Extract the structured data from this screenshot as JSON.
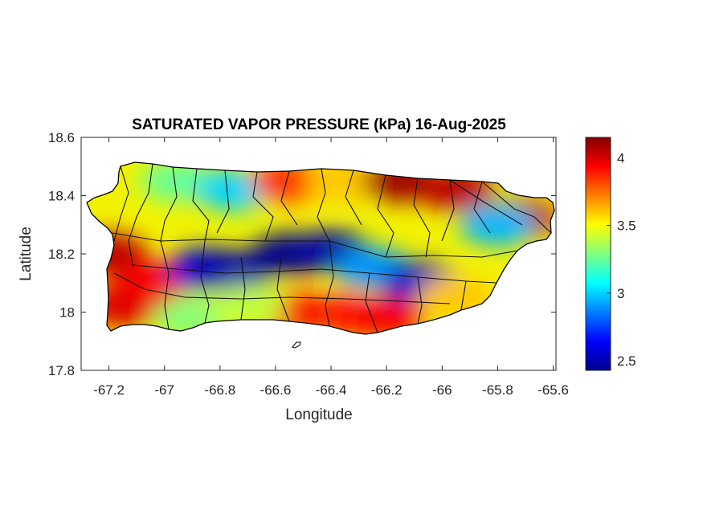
{
  "chart_data": {
    "type": "heatmap",
    "title": "SATURATED VAPOR PRESSURE (kPa) 16-Aug-2025",
    "xlabel": "Longitude",
    "ylabel": "Latitude",
    "xlim": [
      -67.3,
      -65.59
    ],
    "ylim": [
      17.8,
      18.6
    ],
    "x_ticks": [
      -67.2,
      -67,
      -66.8,
      -66.6,
      -66.4,
      -66.2,
      -66,
      -65.8,
      -65.6
    ],
    "x_tick_labels": [
      "-67.2",
      "-67",
      "-66.8",
      "-66.6",
      "-66.4",
      "-66.2",
      "-66",
      "-65.8",
      "-65.6"
    ],
    "y_ticks": [
      17.8,
      18,
      18.2,
      18.4,
      18.6
    ],
    "y_tick_labels": [
      "17.8",
      "18",
      "18.2",
      "18.4",
      "18.6"
    ],
    "colorbar": {
      "colormap": "jet",
      "range": [
        2.43,
        4.15
      ],
      "ticks": [
        2.5,
        3,
        3.5,
        4
      ],
      "tick_labels": [
        "2.5",
        "3",
        "3.5",
        "4"
      ],
      "placement": "right"
    },
    "region": "Puerto Rico",
    "field_blobs": [
      {
        "lon": -67.2,
        "lat": 18.2,
        "value": 4.05
      },
      {
        "lon": -67.15,
        "lat": 18.02,
        "value": 4.0
      },
      {
        "lon": -67.05,
        "lat": 18.1,
        "value": 3.95
      },
      {
        "lon": -66.95,
        "lat": 18.45,
        "value": 3.25
      },
      {
        "lon": -66.75,
        "lat": 18.42,
        "value": 3.0
      },
      {
        "lon": -66.55,
        "lat": 18.45,
        "value": 3.85
      },
      {
        "lon": -66.35,
        "lat": 18.45,
        "value": 3.6
      },
      {
        "lon": -66.15,
        "lat": 18.45,
        "value": 4.1
      },
      {
        "lon": -65.95,
        "lat": 18.42,
        "value": 4.05
      },
      {
        "lon": -65.72,
        "lat": 18.32,
        "value": 4.05
      },
      {
        "lon": -65.8,
        "lat": 18.3,
        "value": 2.95
      },
      {
        "lon": -66.85,
        "lat": 18.15,
        "value": 2.6
      },
      {
        "lon": -66.75,
        "lat": 18.14,
        "value": 2.5
      },
      {
        "lon": -66.55,
        "lat": 18.2,
        "value": 2.45
      },
      {
        "lon": -66.4,
        "lat": 18.21,
        "value": 2.5
      },
      {
        "lon": -66.25,
        "lat": 18.15,
        "value": 2.9
      },
      {
        "lon": -66.08,
        "lat": 18.1,
        "value": 2.55
      },
      {
        "lon": -66.55,
        "lat": 18.0,
        "value": 3.95
      },
      {
        "lon": -66.35,
        "lat": 17.99,
        "value": 3.9
      },
      {
        "lon": -66.2,
        "lat": 17.98,
        "value": 3.95
      },
      {
        "lon": -65.95,
        "lat": 18.05,
        "value": 3.6
      },
      {
        "lon": -66.9,
        "lat": 17.98,
        "value": 3.3
      },
      {
        "lon": -66.7,
        "lat": 18.02,
        "value": 3.4
      }
    ]
  }
}
